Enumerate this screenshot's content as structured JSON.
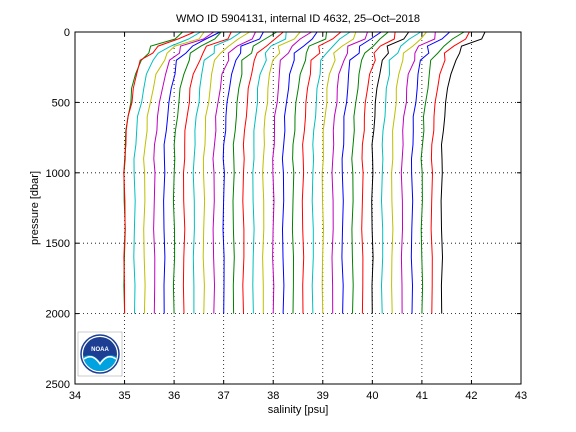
{
  "chart_data": {
    "type": "line",
    "title": "WMO ID 5904131, internal ID 4632, 25–Oct–2018",
    "xlabel": "salinity [psu]",
    "ylabel": "pressure [dbar]",
    "xlim": [
      34,
      43
    ],
    "ylim": [
      0,
      2500
    ],
    "y_reversed": true,
    "grid": true,
    "x_ticks": [
      "34",
      "35",
      "36",
      "37",
      "38",
      "39",
      "40",
      "41",
      "42",
      "43"
    ],
    "y_ticks": [
      "0",
      "500",
      "1000",
      "1500",
      "2000",
      "2500"
    ],
    "pressure": [
      0,
      50,
      100,
      150,
      200,
      300,
      400,
      500,
      600,
      700,
      800,
      900,
      1000,
      1200,
      1400,
      1600,
      1800,
      2000
    ],
    "profile_shape": [
      0.9,
      0.75,
      0.45,
      0.35,
      0.25,
      0.17,
      0.12,
      0.09,
      0.05,
      0.03,
      0.01,
      0.0,
      0.0,
      0.0,
      0.0,
      0.0,
      0.0,
      0.0
    ],
    "series": [
      {
        "color": "#008000",
        "deep": 35.0,
        "near_surface": 36.3
      },
      {
        "color": "#ff0000",
        "deep": 35.0,
        "near_surface": 36.5
      },
      {
        "color": "#00bfbf",
        "deep": 35.2,
        "near_surface": 36.7
      },
      {
        "color": "#bfbf00",
        "deep": 35.4,
        "near_surface": 36.8
      },
      {
        "color": "#bf00bf",
        "deep": 35.6,
        "near_surface": 36.9
      },
      {
        "color": "#0000ff",
        "deep": 35.8,
        "near_surface": 37.0
      },
      {
        "color": "#008000",
        "deep": 36.0,
        "near_surface": 37.1
      },
      {
        "color": "#ff0000",
        "deep": 36.2,
        "near_surface": 37.3
      },
      {
        "color": "#00bfbf",
        "deep": 36.4,
        "near_surface": 37.4
      },
      {
        "color": "#bfbf00",
        "deep": 36.6,
        "near_surface": 37.6
      },
      {
        "color": "#bf00bf",
        "deep": 36.8,
        "near_surface": 37.8
      },
      {
        "color": "#0000ff",
        "deep": 37.0,
        "near_surface": 37.9
      },
      {
        "color": "#008000",
        "deep": 37.2,
        "near_surface": 38.1
      },
      {
        "color": "#ff0000",
        "deep": 37.4,
        "near_surface": 38.3
      },
      {
        "color": "#00bfbf",
        "deep": 37.6,
        "near_surface": 38.4
      },
      {
        "color": "#bfbf00",
        "deep": 37.8,
        "near_surface": 38.6
      },
      {
        "color": "#bf00bf",
        "deep": 38.0,
        "near_surface": 38.8
      },
      {
        "color": "#0000ff",
        "deep": 38.2,
        "near_surface": 39.0
      },
      {
        "color": "#008000",
        "deep": 38.4,
        "near_surface": 39.2
      },
      {
        "color": "#ff0000",
        "deep": 38.6,
        "near_surface": 39.4
      },
      {
        "color": "#00bfbf",
        "deep": 38.8,
        "near_surface": 39.6
      },
      {
        "color": "#bfbf00",
        "deep": 39.0,
        "near_surface": 39.8
      },
      {
        "color": "#bf00bf",
        "deep": 39.2,
        "near_surface": 40.0
      },
      {
        "color": "#0000ff",
        "deep": 39.4,
        "near_surface": 40.2
      },
      {
        "color": "#008000",
        "deep": 39.6,
        "near_surface": 40.4
      },
      {
        "color": "#ff0000",
        "deep": 39.8,
        "near_surface": 40.6
      },
      {
        "color": "#000000",
        "deep": 40.0,
        "near_surface": 40.8
      },
      {
        "color": "#00bfbf",
        "deep": 40.2,
        "near_surface": 41.0
      },
      {
        "color": "#bfbf00",
        "deep": 40.4,
        "near_surface": 41.2
      },
      {
        "color": "#bf00bf",
        "deep": 40.6,
        "near_surface": 41.4
      },
      {
        "color": "#0000ff",
        "deep": 40.8,
        "near_surface": 41.6
      },
      {
        "color": "#008000",
        "deep": 41.0,
        "near_surface": 41.9
      },
      {
        "color": "#ff0000",
        "deep": 41.2,
        "near_surface": 42.1
      },
      {
        "color": "#000000",
        "deep": 41.4,
        "near_surface": 42.4
      }
    ]
  },
  "logo": {
    "text": "NOAA",
    "colors": {
      "sky": "#1c3f94",
      "sea": "#00a3e0",
      "ring": "#ffffff"
    }
  }
}
